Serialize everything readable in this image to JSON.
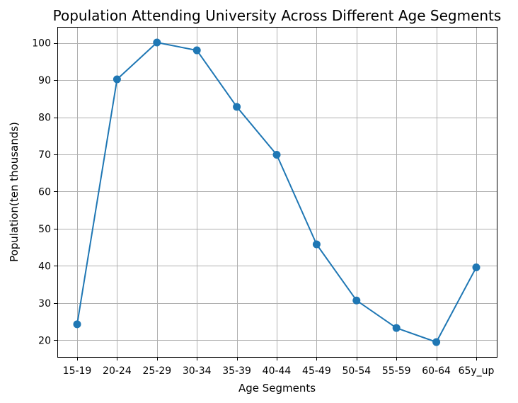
{
  "chart_data": {
    "type": "line",
    "title": "Population Attending University Across Different Age Segments",
    "xlabel": "Age Segments",
    "ylabel": "Population(ten thousands)",
    "categories": [
      "15-19",
      "20-24",
      "25-29",
      "30-34",
      "35-39",
      "40-44",
      "45-49",
      "50-54",
      "55-59",
      "60-64",
      "65y_up"
    ],
    "series": [
      {
        "values": [
          24.3,
          90.2,
          100.1,
          98.0,
          82.8,
          69.9,
          45.8,
          30.7,
          23.3,
          19.5,
          39.6
        ]
      }
    ],
    "yticks": [
      20,
      30,
      40,
      50,
      60,
      70,
      80,
      90,
      100
    ],
    "ylim": [
      15.5,
      104.3
    ],
    "grid": true,
    "marker": "circle",
    "colors": {
      "line": "#1f77b4",
      "grid": "#b0b0b0"
    }
  }
}
